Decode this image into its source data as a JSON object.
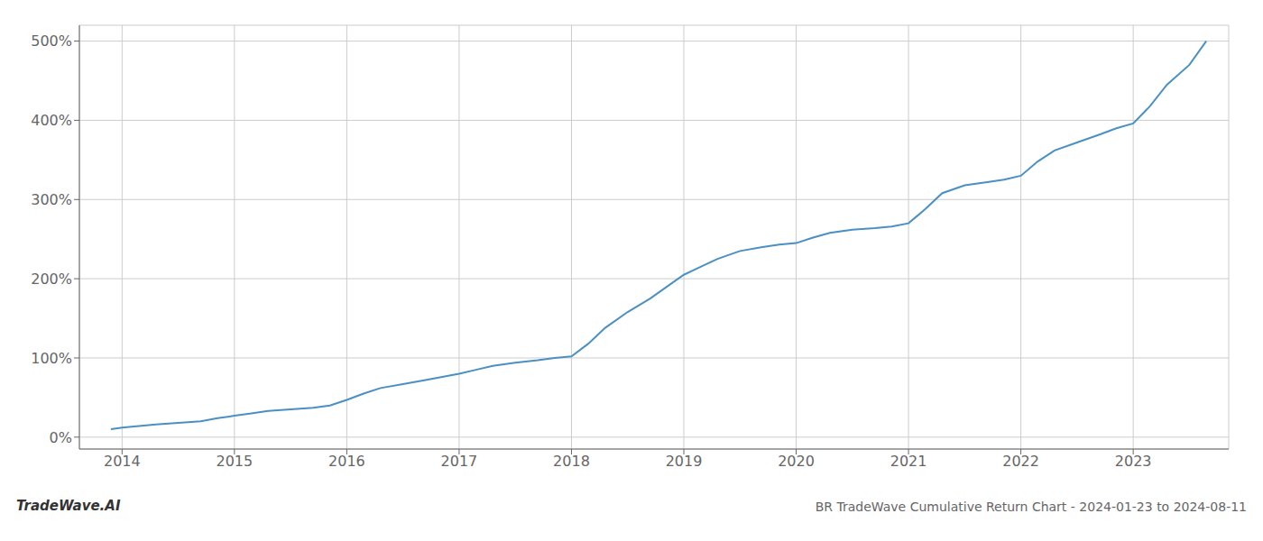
{
  "chart_data": {
    "type": "line",
    "title": "BR TradeWave Cumulative Return Chart - 2024-01-23 to 2024-08-11",
    "annotations": [
      "TradeWave.AI"
    ],
    "color": "#4A90C4",
    "grid": true,
    "x": [
      2013.9,
      2014.0,
      2014.15,
      2014.3,
      2014.5,
      2014.7,
      2014.85,
      2015.0,
      2015.15,
      2015.3,
      2015.5,
      2015.7,
      2015.85,
      2016.0,
      2016.15,
      2016.3,
      2016.5,
      2016.7,
      2016.85,
      2017.0,
      2017.15,
      2017.3,
      2017.5,
      2017.7,
      2017.85,
      2018.0,
      2018.15,
      2018.3,
      2018.5,
      2018.7,
      2018.85,
      2019.0,
      2019.15,
      2019.3,
      2019.5,
      2019.7,
      2019.85,
      2020.0,
      2020.15,
      2020.3,
      2020.5,
      2020.7,
      2020.85,
      2021.0,
      2021.15,
      2021.3,
      2021.5,
      2021.7,
      2021.85,
      2022.0,
      2022.15,
      2022.3,
      2022.5,
      2022.7,
      2022.85,
      2023.0,
      2023.15,
      2023.3,
      2023.5,
      2023.65
    ],
    "values": [
      10,
      12,
      14,
      16,
      18,
      20,
      24,
      27,
      30,
      33,
      35,
      37,
      40,
      47,
      55,
      62,
      67,
      72,
      76,
      80,
      85,
      90,
      94,
      97,
      100,
      102,
      118,
      138,
      158,
      175,
      190,
      205,
      215,
      225,
      235,
      240,
      243,
      245,
      252,
      258,
      262,
      264,
      266,
      270,
      288,
      308,
      318,
      322,
      325,
      330,
      348,
      362,
      372,
      382,
      390,
      396,
      418,
      445,
      470,
      500
    ],
    "xlim": [
      2013.62,
      2023.85
    ],
    "xticks": [
      2014,
      2015,
      2016,
      2017,
      2018,
      2019,
      2020,
      2021,
      2022,
      2023
    ],
    "ylim": [
      -15,
      520
    ],
    "yticks": [
      {
        "value": 0,
        "label": "0%"
      },
      {
        "value": 100,
        "label": "100%"
      },
      {
        "value": 200,
        "label": "200%"
      },
      {
        "value": 300,
        "label": "300%"
      },
      {
        "value": 400,
        "label": "400%"
      },
      {
        "value": 500,
        "label": "500%"
      }
    ]
  }
}
